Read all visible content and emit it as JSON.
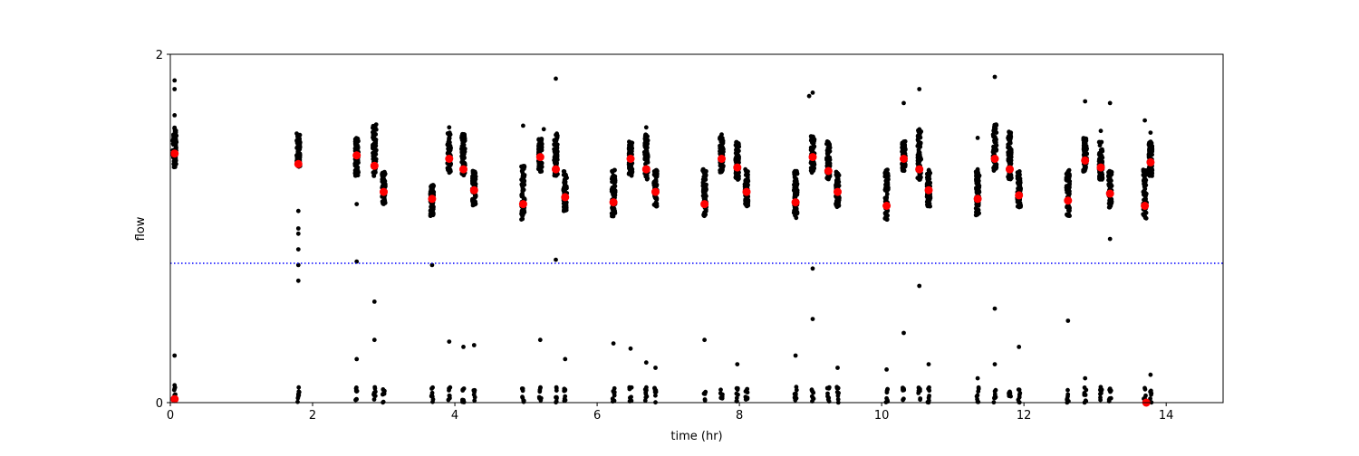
{
  "chart_data": {
    "type": "scatter",
    "title": "",
    "xlabel": "time (hr)",
    "ylabel": "flow",
    "xlim": [
      0,
      14.8
    ],
    "ylim": [
      0,
      2
    ],
    "xticks": [
      0,
      2,
      4,
      6,
      8,
      10,
      12,
      14
    ],
    "xtick_labels": [
      "0",
      "2",
      "4",
      "6",
      "8",
      "10",
      "12",
      "14"
    ],
    "yticks": [
      0,
      2
    ],
    "ytick_labels": [
      "0",
      "2"
    ],
    "grid": false,
    "threshold_line": {
      "y": 0.8,
      "style": "dotted",
      "color": "#0000ff"
    },
    "colors": {
      "raw_points": "#000000",
      "mean_points": "#ff0000"
    },
    "bursts": [
      {
        "t": 0.06,
        "low": 1.35,
        "high": 1.58,
        "mean": 1.43
      },
      {
        "t": 1.8,
        "low": 1.35,
        "high": 1.55,
        "mean": 1.37
      },
      {
        "t": 2.62,
        "low": 1.3,
        "high": 1.52,
        "mean": 1.42
      },
      {
        "t": 2.87,
        "low": 1.3,
        "high": 1.6,
        "mean": 1.36
      },
      {
        "t": 3.0,
        "low": 1.14,
        "high": 1.33,
        "mean": 1.21
      },
      {
        "t": 3.68,
        "low": 1.07,
        "high": 1.25,
        "mean": 1.17
      },
      {
        "t": 3.92,
        "low": 1.32,
        "high": 1.56,
        "mean": 1.4
      },
      {
        "t": 4.12,
        "low": 1.3,
        "high": 1.55,
        "mean": 1.34
      },
      {
        "t": 4.27,
        "low": 1.13,
        "high": 1.33,
        "mean": 1.22
      },
      {
        "t": 4.96,
        "low": 1.05,
        "high": 1.36,
        "mean": 1.14
      },
      {
        "t": 5.2,
        "low": 1.32,
        "high": 1.52,
        "mean": 1.41
      },
      {
        "t": 5.42,
        "low": 1.3,
        "high": 1.55,
        "mean": 1.34
      },
      {
        "t": 5.55,
        "low": 1.1,
        "high": 1.33,
        "mean": 1.18
      },
      {
        "t": 6.23,
        "low": 1.07,
        "high": 1.34,
        "mean": 1.15
      },
      {
        "t": 6.47,
        "low": 1.3,
        "high": 1.5,
        "mean": 1.4
      },
      {
        "t": 6.69,
        "low": 1.28,
        "high": 1.54,
        "mean": 1.34
      },
      {
        "t": 6.82,
        "low": 1.12,
        "high": 1.34,
        "mean": 1.21
      },
      {
        "t": 7.51,
        "low": 1.07,
        "high": 1.34,
        "mean": 1.14
      },
      {
        "t": 7.75,
        "low": 1.32,
        "high": 1.53,
        "mean": 1.4
      },
      {
        "t": 7.97,
        "low": 1.28,
        "high": 1.5,
        "mean": 1.35
      },
      {
        "t": 8.1,
        "low": 1.12,
        "high": 1.34,
        "mean": 1.21
      },
      {
        "t": 8.79,
        "low": 1.06,
        "high": 1.34,
        "mean": 1.15
      },
      {
        "t": 9.03,
        "low": 1.32,
        "high": 1.53,
        "mean": 1.41
      },
      {
        "t": 9.25,
        "low": 1.28,
        "high": 1.5,
        "mean": 1.33
      },
      {
        "t": 9.38,
        "low": 1.12,
        "high": 1.33,
        "mean": 1.21
      },
      {
        "t": 10.07,
        "low": 1.05,
        "high": 1.34,
        "mean": 1.13
      },
      {
        "t": 10.31,
        "low": 1.33,
        "high": 1.5,
        "mean": 1.4
      },
      {
        "t": 10.53,
        "low": 1.28,
        "high": 1.57,
        "mean": 1.34
      },
      {
        "t": 10.66,
        "low": 1.12,
        "high": 1.34,
        "mean": 1.22
      },
      {
        "t": 11.35,
        "low": 1.07,
        "high": 1.34,
        "mean": 1.17
      },
      {
        "t": 11.59,
        "low": 1.33,
        "high": 1.6,
        "mean": 1.4
      },
      {
        "t": 11.8,
        "low": 1.28,
        "high": 1.56,
        "mean": 1.34
      },
      {
        "t": 11.93,
        "low": 1.12,
        "high": 1.33,
        "mean": 1.19
      },
      {
        "t": 12.62,
        "low": 1.07,
        "high": 1.34,
        "mean": 1.16
      },
      {
        "t": 12.86,
        "low": 1.32,
        "high": 1.52,
        "mean": 1.39
      },
      {
        "t": 13.08,
        "low": 1.28,
        "high": 1.5,
        "mean": 1.35
      },
      {
        "t": 13.21,
        "low": 1.12,
        "high": 1.34,
        "mean": 1.2
      },
      {
        "t": 13.7,
        "low": 1.05,
        "high": 1.34,
        "mean": 1.13
      },
      {
        "t": 13.78,
        "low": 1.3,
        "high": 1.5,
        "mean": 1.38
      }
    ],
    "outliers": [
      [
        0.06,
        1.85
      ],
      [
        0.06,
        1.8
      ],
      [
        0.06,
        1.65
      ],
      [
        0.06,
        0.27
      ],
      [
        0.06,
        0.1
      ],
      [
        0.06,
        0.08
      ],
      [
        1.8,
        1.0
      ],
      [
        1.8,
        0.97
      ],
      [
        1.8,
        0.88
      ],
      [
        1.8,
        0.79
      ],
      [
        1.8,
        0.7
      ],
      [
        1.8,
        1.1
      ],
      [
        2.62,
        0.81
      ],
      [
        2.62,
        1.14
      ],
      [
        2.62,
        0.25
      ],
      [
        2.87,
        0.58
      ],
      [
        2.87,
        0.36
      ],
      [
        3.68,
        0.79
      ],
      [
        3.92,
        0.35
      ],
      [
        4.12,
        0.32
      ],
      [
        4.27,
        0.33
      ],
      [
        3.92,
        1.58
      ],
      [
        4.96,
        1.59
      ],
      [
        5.2,
        0.36
      ],
      [
        5.42,
        1.86
      ],
      [
        5.42,
        0.82
      ],
      [
        5.55,
        0.25
      ],
      [
        5.25,
        1.57
      ],
      [
        6.23,
        0.34
      ],
      [
        6.47,
        0.31
      ],
      [
        6.69,
        0.23
      ],
      [
        6.82,
        0.2
      ],
      [
        6.69,
        1.58
      ],
      [
        7.51,
        0.36
      ],
      [
        7.97,
        0.22
      ],
      [
        7.75,
        1.54
      ],
      [
        8.79,
        0.27
      ],
      [
        9.03,
        1.78
      ],
      [
        8.98,
        1.76
      ],
      [
        9.03,
        0.77
      ],
      [
        9.03,
        0.48
      ],
      [
        9.38,
        0.2
      ],
      [
        10.07,
        0.19
      ],
      [
        10.31,
        1.72
      ],
      [
        10.31,
        0.4
      ],
      [
        10.53,
        1.8
      ],
      [
        10.53,
        0.67
      ],
      [
        10.66,
        0.22
      ],
      [
        11.35,
        0.14
      ],
      [
        11.59,
        1.87
      ],
      [
        11.59,
        0.54
      ],
      [
        11.59,
        0.22
      ],
      [
        11.93,
        0.32
      ],
      [
        11.35,
        1.52
      ],
      [
        12.62,
        0.47
      ],
      [
        12.86,
        1.73
      ],
      [
        12.86,
        0.14
      ],
      [
        13.08,
        1.56
      ],
      [
        13.21,
        1.72
      ],
      [
        13.21,
        0.94
      ],
      [
        13.7,
        1.62
      ],
      [
        13.78,
        0.16
      ],
      [
        13.78,
        1.55
      ]
    ],
    "zero_means": [
      [
        0.06,
        0.02
      ],
      [
        13.72,
        0.0
      ]
    ]
  }
}
